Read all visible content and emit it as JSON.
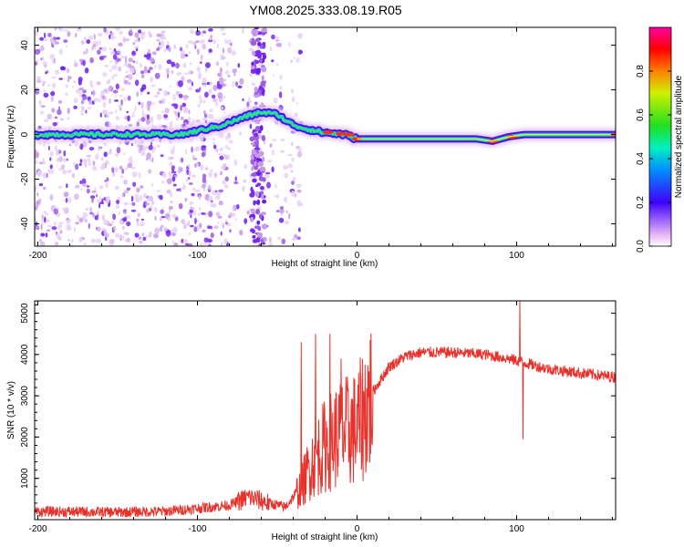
{
  "title": "YM08.2025.333.08.19.R05",
  "chart_data": [
    {
      "type": "heatmap",
      "name": "spectrogram",
      "xlabel": "Height of straight line (km)",
      "ylabel": "Frequency (Hz)",
      "xlim": [
        -202,
        162
      ],
      "ylim": [
        -50,
        48
      ],
      "xticks": [
        -200,
        -100,
        0,
        100
      ],
      "xtick_labels": [
        "-200",
        "-100",
        "0",
        "100"
      ],
      "yticks": [
        -40,
        -20,
        0,
        20,
        40
      ],
      "ytick_labels": [
        "-40",
        "-20",
        "0",
        "20",
        "40"
      ],
      "colorbar": {
        "label": "Normalized spectral amplitude",
        "range": [
          0,
          1
        ],
        "ticks": [
          0.0,
          0.2,
          0.4,
          0.6,
          0.8
        ],
        "tick_labels": [
          "0.0",
          "0.2",
          "0.4",
          "0.6",
          "0.8"
        ]
      },
      "ridge": {
        "x": [
          -202,
          -150,
          -110,
          -85,
          -70,
          -60,
          -50,
          -42,
          -35,
          -28,
          -22,
          -15,
          -8,
          0,
          40,
          75,
          85,
          95,
          105,
          130,
          162
        ],
        "freq": [
          0,
          0,
          0,
          4,
          8,
          10,
          9,
          5,
          3,
          2,
          1,
          0.5,
          0,
          -2,
          -2,
          -2,
          -3,
          -1,
          0,
          0,
          0
        ]
      },
      "vertical_band_x": -62
    },
    {
      "type": "line",
      "name": "snr",
      "xlabel": "Height of straight line (km)",
      "ylabel": "SNR (10 * v/v)",
      "xlim": [
        -202,
        162
      ],
      "ylim": [
        0,
        5300
      ],
      "xticks": [
        -200,
        -100,
        0,
        100
      ],
      "xtick_labels": [
        "-200",
        "-100",
        "0",
        "100"
      ],
      "yticks": [
        1000,
        2000,
        3000,
        4000,
        5000
      ],
      "ytick_labels": [
        "1000",
        "2000",
        "3000",
        "4000",
        "5000"
      ],
      "color": "#e8312a",
      "envelope": {
        "x": [
          -202,
          -150,
          -120,
          -80,
          -68,
          -55,
          -45,
          -35,
          -28,
          -20,
          -10,
          0,
          10,
          20,
          30,
          40,
          60,
          80,
          95,
          105,
          120,
          140,
          162
        ],
        "y": [
          200,
          180,
          200,
          350,
          550,
          400,
          300,
          800,
          1400,
          1800,
          2100,
          2200,
          3100,
          3700,
          3950,
          4050,
          4050,
          4000,
          3900,
          3800,
          3650,
          3550,
          3450
        ]
      },
      "spikes": [
        {
          "x": -35,
          "y": 4300
        },
        {
          "x": -26,
          "y": 4500
        },
        {
          "x": -17,
          "y": 4500
        },
        {
          "x": -10,
          "y": 3900
        },
        {
          "x": 102,
          "y": 5300
        },
        {
          "x": 104,
          "y": 1950
        }
      ]
    }
  ]
}
